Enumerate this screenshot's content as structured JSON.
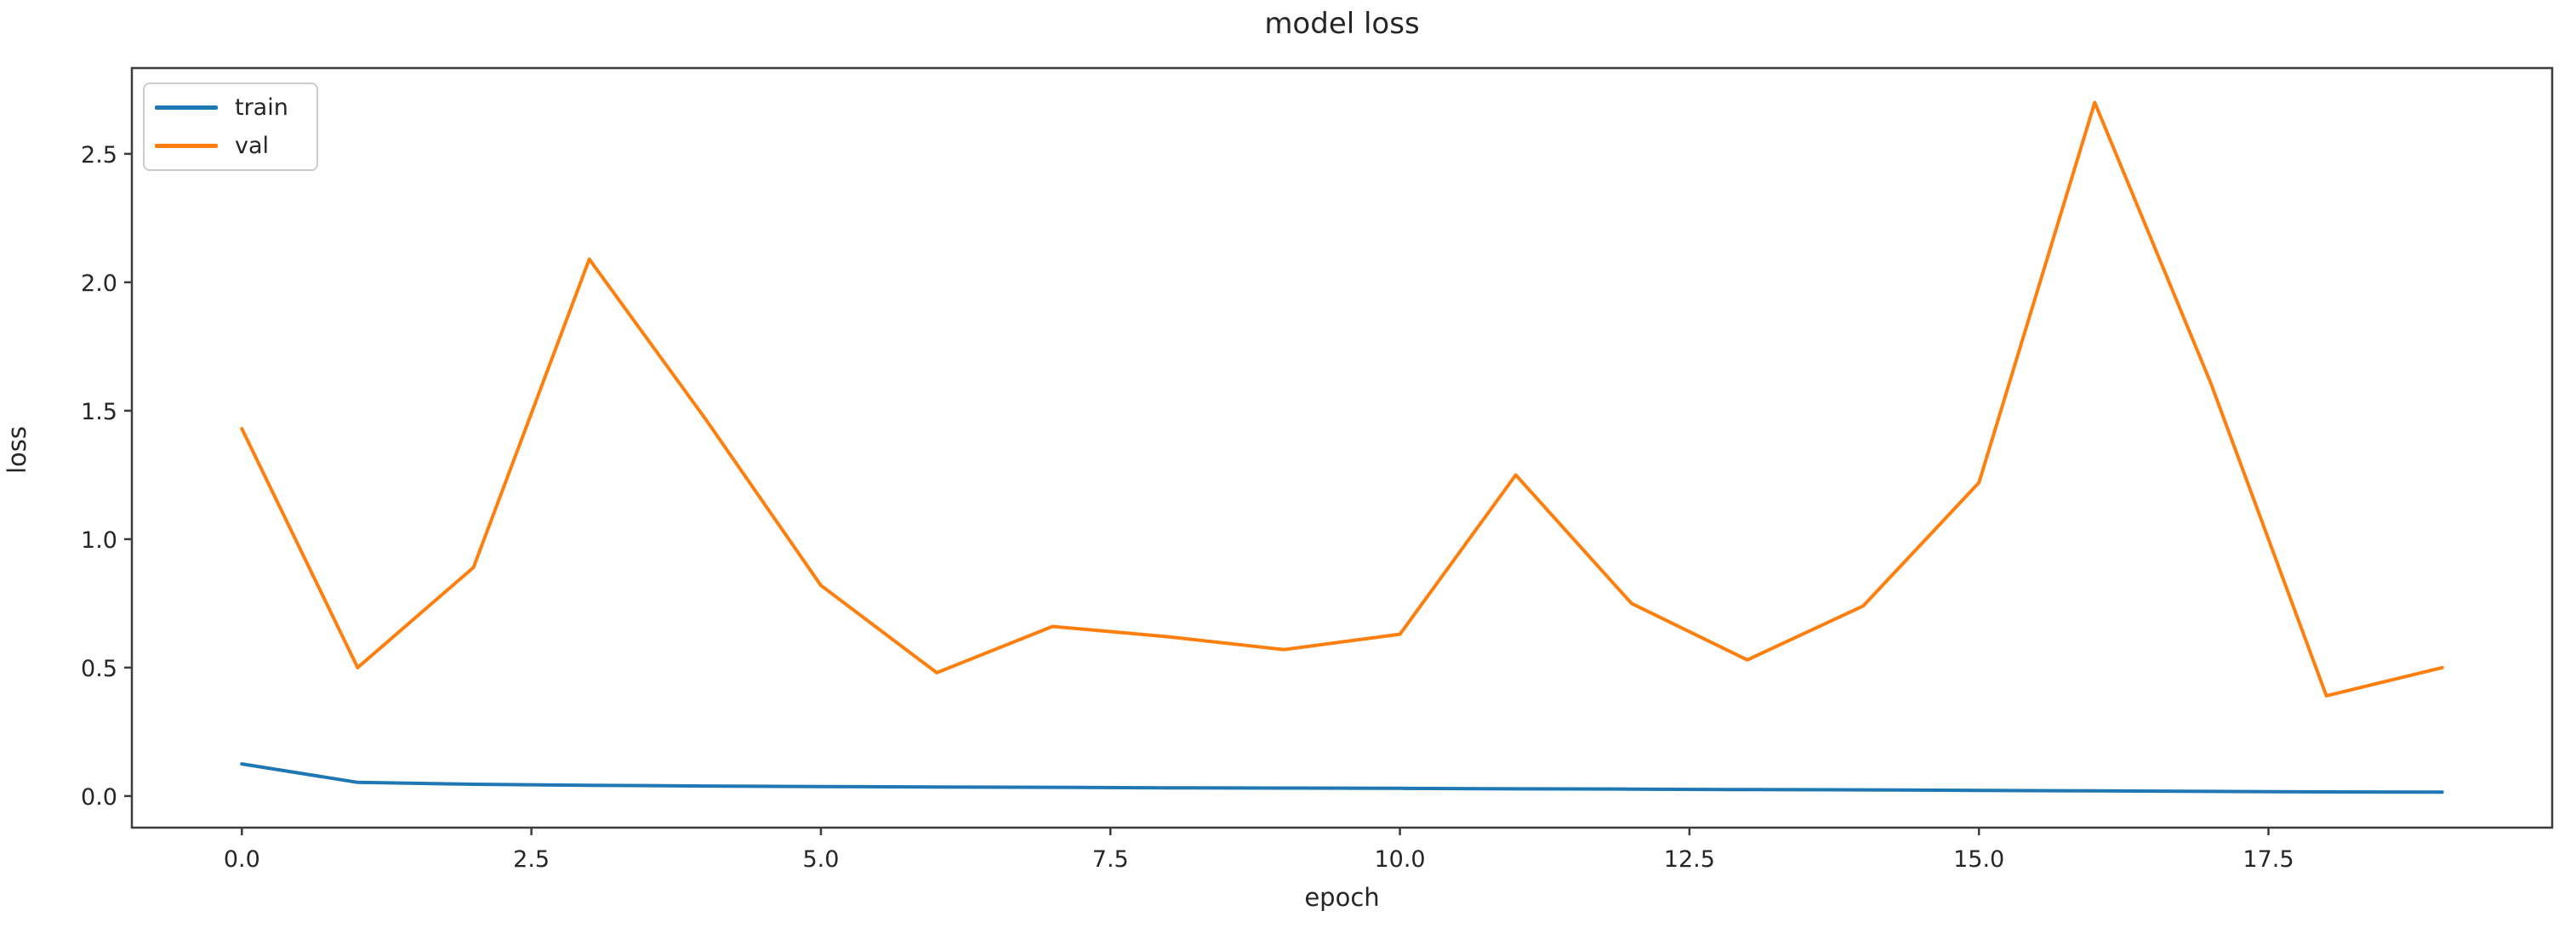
{
  "chart_data": {
    "type": "line",
    "title": "model loss",
    "xlabel": "epoch",
    "ylabel": "loss",
    "grid": false,
    "legend_position": "upper left",
    "axis_color": "#3c3c3c",
    "text_color": "#262626",
    "xlim": [
      -0.95,
      19.95
    ],
    "ylim": [
      -0.123,
      2.834
    ],
    "xticks": [
      0.0,
      2.5,
      5.0,
      7.5,
      10.0,
      12.5,
      15.0,
      17.5
    ],
    "xtick_labels": [
      "0.0",
      "2.5",
      "5.0",
      "7.5",
      "10.0",
      "12.5",
      "15.0",
      "17.5"
    ],
    "yticks": [
      0.0,
      0.5,
      1.0,
      1.5,
      2.0,
      2.5
    ],
    "ytick_labels": [
      "0.0",
      "0.5",
      "1.0",
      "1.5",
      "2.0",
      "2.5"
    ],
    "x": [
      0,
      1,
      2,
      3,
      4,
      5,
      6,
      7,
      8,
      9,
      10,
      11,
      12,
      13,
      14,
      15,
      16,
      17,
      18,
      19
    ],
    "series": [
      {
        "name": "train",
        "color": "#1f77b4",
        "values": [
          0.125,
          0.053,
          0.046,
          0.042,
          0.039,
          0.037,
          0.035,
          0.034,
          0.032,
          0.031,
          0.03,
          0.028,
          0.027,
          0.025,
          0.024,
          0.022,
          0.02,
          0.018,
          0.016,
          0.015
        ]
      },
      {
        "name": "val",
        "color": "#ff7f0e",
        "values": [
          1.43,
          0.5,
          0.89,
          2.09,
          1.47,
          0.82,
          0.48,
          0.66,
          0.62,
          0.57,
          0.63,
          1.25,
          0.75,
          0.53,
          0.74,
          1.22,
          2.7,
          1.61,
          0.39,
          0.5
        ]
      }
    ]
  }
}
